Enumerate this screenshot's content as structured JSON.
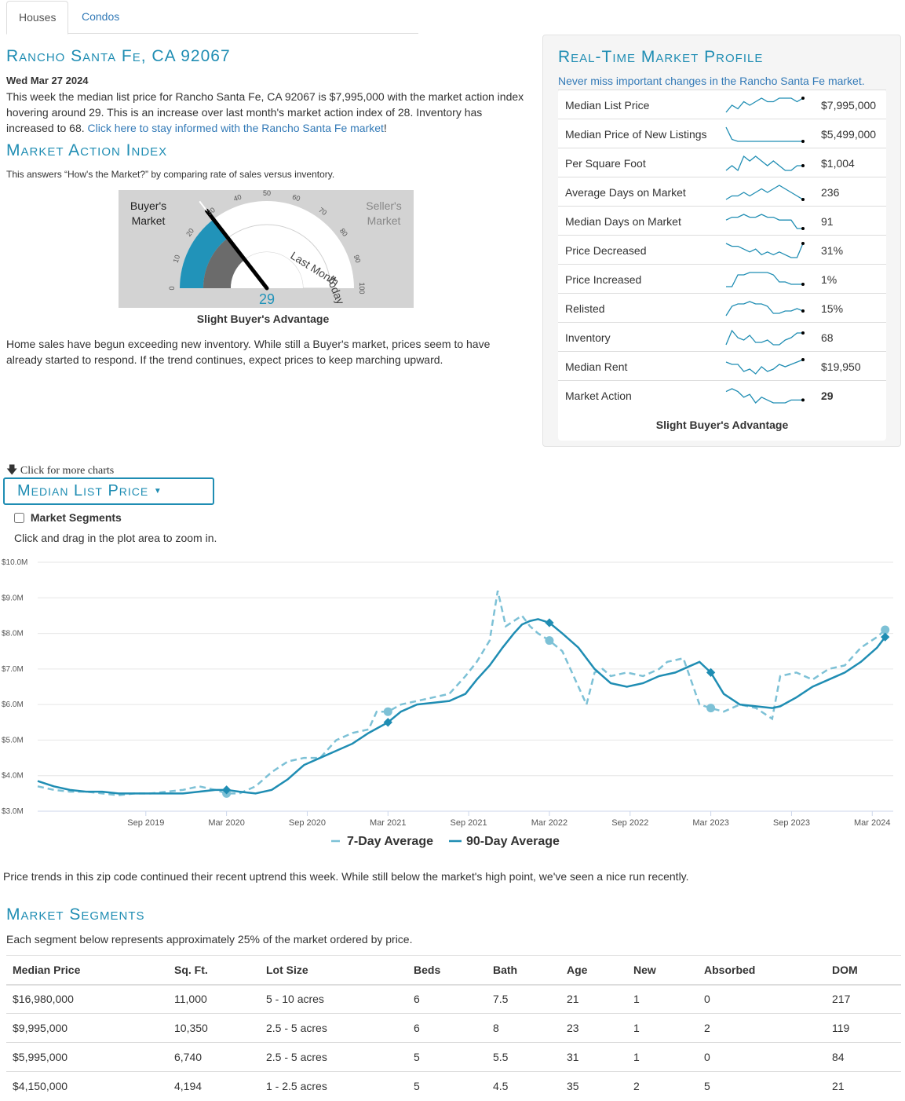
{
  "tabs": [
    {
      "label": "Houses",
      "active": true
    },
    {
      "label": "Condos",
      "active": false
    }
  ],
  "location_title": "Rancho Santa Fe, CA 92067",
  "date": "Wed Mar 27 2024",
  "intro_text": "This week the median list price for Rancho Santa Fe, CA 92067 is $7,995,000 with the market action index hovering around 29. This is an increase over last month's market action index of 28. Inventory has increased to 68.",
  "intro_link": "Click here to stay informed with the Rancho Santa Fe market",
  "intro_link_suffix": "!",
  "mai": {
    "title": "Market Action Index",
    "subtitle": "This answers “How's the Market?” by comparing rate of sales versus inventory.",
    "value": "29",
    "value_num": 29,
    "last_month_num": 28,
    "buyers_label_1": "Buyer's",
    "buyers_label_2": "Market",
    "sellers_label_1": "Seller's",
    "sellers_label_2": "Market",
    "last_month_label": "Last Month",
    "today_label": "Today",
    "ticks": [
      "0",
      "10",
      "20",
      "30",
      "40",
      "50",
      "60",
      "70",
      "80",
      "90",
      "100"
    ],
    "caption": "Slight Buyer's Advantage",
    "description": "Home sales have begun exceeding new inventory. While still a Buyer's market, prices seem to have already started to respond. If the trend continues, expect prices to keep marching upward."
  },
  "profile": {
    "title": "Real-Time Market Profile",
    "subtitle": "Never miss important changes in the Rancho Santa Fe market.",
    "rows": [
      {
        "label": "Median List Price",
        "value": "$7,995,000",
        "spark": [
          5,
          7,
          6,
          8,
          7,
          8,
          9,
          8,
          8,
          9,
          9,
          9,
          8,
          9
        ]
      },
      {
        "label": "Median Price of New Listings",
        "value": "$5,499,000",
        "spark": [
          9,
          3,
          2,
          2,
          2,
          2,
          2,
          2,
          2,
          2,
          2,
          2,
          2,
          2
        ]
      },
      {
        "label": "Per Square Foot",
        "value": "$1,004",
        "spark": [
          4,
          5,
          4,
          7,
          6,
          7,
          6,
          5,
          6,
          5,
          4,
          4,
          5,
          5
        ]
      },
      {
        "label": "Average Days on Market",
        "value": "236",
        "spark": [
          3,
          4,
          4,
          5,
          4,
          5,
          6,
          5,
          6,
          7,
          6,
          5,
          4,
          3
        ]
      },
      {
        "label": "Median Days on Market",
        "value": "91",
        "spark": [
          6,
          7,
          7,
          8,
          7,
          7,
          8,
          7,
          7,
          6,
          6,
          6,
          3,
          3
        ]
      },
      {
        "label": "Price Decreased",
        "value": "31%",
        "spark": [
          8,
          7,
          7,
          6,
          5,
          6,
          4,
          5,
          4,
          5,
          4,
          3,
          3,
          8
        ]
      },
      {
        "label": "Price Increased",
        "value": "1%",
        "spark": [
          2,
          2,
          7,
          7,
          8,
          8,
          8,
          8,
          7,
          4,
          4,
          3,
          3,
          3
        ]
      },
      {
        "label": "Relisted",
        "value": "15%",
        "spark": [
          2,
          6,
          7,
          7,
          8,
          7,
          7,
          6,
          3,
          3,
          4,
          4,
          5,
          4
        ]
      },
      {
        "label": "Inventory",
        "value": "68",
        "spark": [
          3,
          9,
          6,
          5,
          7,
          4,
          4,
          5,
          3,
          3,
          5,
          6,
          8,
          8
        ]
      },
      {
        "label": "Median Rent",
        "value": "$19,950",
        "spark": [
          7,
          6,
          6,
          3,
          4,
          2,
          5,
          3,
          4,
          6,
          5,
          6,
          7,
          8
        ]
      },
      {
        "label": "Market Action",
        "value": "29",
        "spark": [
          7,
          8,
          7,
          5,
          6,
          3,
          5,
          4,
          3,
          3,
          3,
          4,
          4,
          4
        ],
        "bold": true
      }
    ],
    "footer": "Slight Buyer's Advantage"
  },
  "charts_nav": {
    "click_more": "Click for more charts",
    "selected_chart": "Median List Price",
    "market_segments_checkbox": "Market Segments",
    "zoom_hint": "Click and drag in the plot area to zoom in."
  },
  "chart_data": {
    "type": "line",
    "title": "Median List Price",
    "ylim": [
      3.0,
      10.0
    ],
    "y_ticks": [
      "$3.0M",
      "$4.0M",
      "$5.0M",
      "$6.0M",
      "$7.0M",
      "$8.0M",
      "$9.0M",
      "$10.0M"
    ],
    "y_tick_values": [
      3,
      4,
      5,
      6,
      7,
      8,
      9,
      10
    ],
    "x_range": [
      2019.0,
      2024.3
    ],
    "x_ticks": [
      "Sep 2019",
      "Mar 2020",
      "Sep 2020",
      "Mar 2021",
      "Sep 2021",
      "Mar 2022",
      "Sep 2022",
      "Mar 2023",
      "Sep 2023",
      "Mar 2024"
    ],
    "x_tick_values": [
      2019.67,
      2020.17,
      2020.67,
      2021.17,
      2021.67,
      2022.17,
      2022.67,
      2023.17,
      2023.67,
      2024.17
    ],
    "legend": [
      "7-Day Average",
      "90-Day Average"
    ],
    "series": [
      {
        "name": "7-Day Average",
        "x": [
          2019.0,
          2019.1,
          2019.2,
          2019.3,
          2019.4,
          2019.5,
          2019.6,
          2019.7,
          2019.8,
          2019.9,
          2020.0,
          2020.1,
          2020.17,
          2020.25,
          2020.35,
          2020.45,
          2020.55,
          2020.65,
          2020.75,
          2020.85,
          2020.95,
          2021.05,
          2021.1,
          2021.17,
          2021.25,
          2021.35,
          2021.45,
          2021.55,
          2021.65,
          2021.72,
          2021.8,
          2021.85,
          2021.9,
          2022.0,
          2022.05,
          2022.1,
          2022.17,
          2022.25,
          2022.3,
          2022.4,
          2022.45,
          2022.5,
          2022.55,
          2022.65,
          2022.75,
          2022.85,
          2022.9,
          2023.0,
          2023.1,
          2023.17,
          2023.25,
          2023.35,
          2023.45,
          2023.55,
          2023.6,
          2023.7,
          2023.8,
          2023.9,
          2024.0,
          2024.1,
          2024.2,
          2024.25
        ],
        "values": [
          3.7,
          3.6,
          3.55,
          3.55,
          3.5,
          3.45,
          3.5,
          3.5,
          3.55,
          3.6,
          3.7,
          3.6,
          3.5,
          3.5,
          3.7,
          4.1,
          4.4,
          4.5,
          4.5,
          5.0,
          5.2,
          5.3,
          5.8,
          5.8,
          6.0,
          6.1,
          6.2,
          6.3,
          6.8,
          7.2,
          7.8,
          9.2,
          8.2,
          8.5,
          8.2,
          8.0,
          7.8,
          7.5,
          7.0,
          6.0,
          6.9,
          7.0,
          6.8,
          6.9,
          6.8,
          7.0,
          7.2,
          7.3,
          6.0,
          5.9,
          5.8,
          6.0,
          5.9,
          5.6,
          6.8,
          6.9,
          6.7,
          7.0,
          7.1,
          7.6,
          7.9,
          8.1
        ]
      },
      {
        "name": "90-Day Average",
        "x": [
          2019.0,
          2019.1,
          2019.2,
          2019.3,
          2019.4,
          2019.5,
          2019.6,
          2019.7,
          2019.8,
          2019.9,
          2020.0,
          2020.1,
          2020.17,
          2020.25,
          2020.35,
          2020.45,
          2020.55,
          2020.65,
          2020.75,
          2020.85,
          2020.95,
          2021.05,
          2021.17,
          2021.25,
          2021.35,
          2021.45,
          2021.55,
          2021.65,
          2021.72,
          2021.8,
          2021.88,
          2021.95,
          2022.0,
          2022.05,
          2022.1,
          2022.17,
          2022.25,
          2022.35,
          2022.45,
          2022.55,
          2022.65,
          2022.75,
          2022.85,
          2022.95,
          2023.05,
          2023.1,
          2023.17,
          2023.25,
          2023.35,
          2023.45,
          2023.55,
          2023.6,
          2023.7,
          2023.8,
          2023.9,
          2024.0,
          2024.1,
          2024.2,
          2024.25
        ],
        "values": [
          3.85,
          3.7,
          3.6,
          3.55,
          3.55,
          3.5,
          3.5,
          3.5,
          3.5,
          3.5,
          3.55,
          3.6,
          3.6,
          3.55,
          3.5,
          3.6,
          3.9,
          4.3,
          4.5,
          4.7,
          4.9,
          5.2,
          5.5,
          5.8,
          6.0,
          6.05,
          6.1,
          6.3,
          6.7,
          7.1,
          7.6,
          8.0,
          8.25,
          8.35,
          8.4,
          8.3,
          8.0,
          7.6,
          7.0,
          6.6,
          6.5,
          6.6,
          6.8,
          6.9,
          7.1,
          7.2,
          6.9,
          6.3,
          6.0,
          5.95,
          5.9,
          5.95,
          6.2,
          6.5,
          6.7,
          6.9,
          7.2,
          7.6,
          7.9
        ]
      }
    ]
  },
  "trend_text": "Price trends in this zip code continued their recent uptrend this week. While still below the market's high point, we've seen a nice run recently.",
  "segments": {
    "title": "Market Segments",
    "subtitle": "Each segment below represents approximately 25% of the market ordered by price.",
    "headers": [
      "Median Price",
      "Sq. Ft.",
      "Lot Size",
      "Beds",
      "Bath",
      "Age",
      "New",
      "Absorbed",
      "DOM"
    ],
    "rows": [
      [
        "$16,980,000",
        "11,000",
        "5 - 10 acres",
        "6",
        "7.5",
        "21",
        "1",
        "0",
        "217"
      ],
      [
        "$9,995,000",
        "10,350",
        "2.5 - 5 acres",
        "6",
        "8",
        "23",
        "1",
        "2",
        "119"
      ],
      [
        "$5,995,000",
        "6,740",
        "2.5 - 5 acres",
        "5",
        "5.5",
        "31",
        "1",
        "0",
        "84"
      ],
      [
        "$4,150,000",
        "4,194",
        "1 - 2.5 acres",
        "5",
        "4.5",
        "35",
        "2",
        "5",
        "21"
      ]
    ]
  },
  "colors": {
    "accent": "#1f8db3",
    "link": "#337ab7",
    "line7": "#7dc1d6",
    "line90": "#1f8db3",
    "gauge_bg": "#d3d3d3",
    "gauge_fill": "#2193b9"
  }
}
